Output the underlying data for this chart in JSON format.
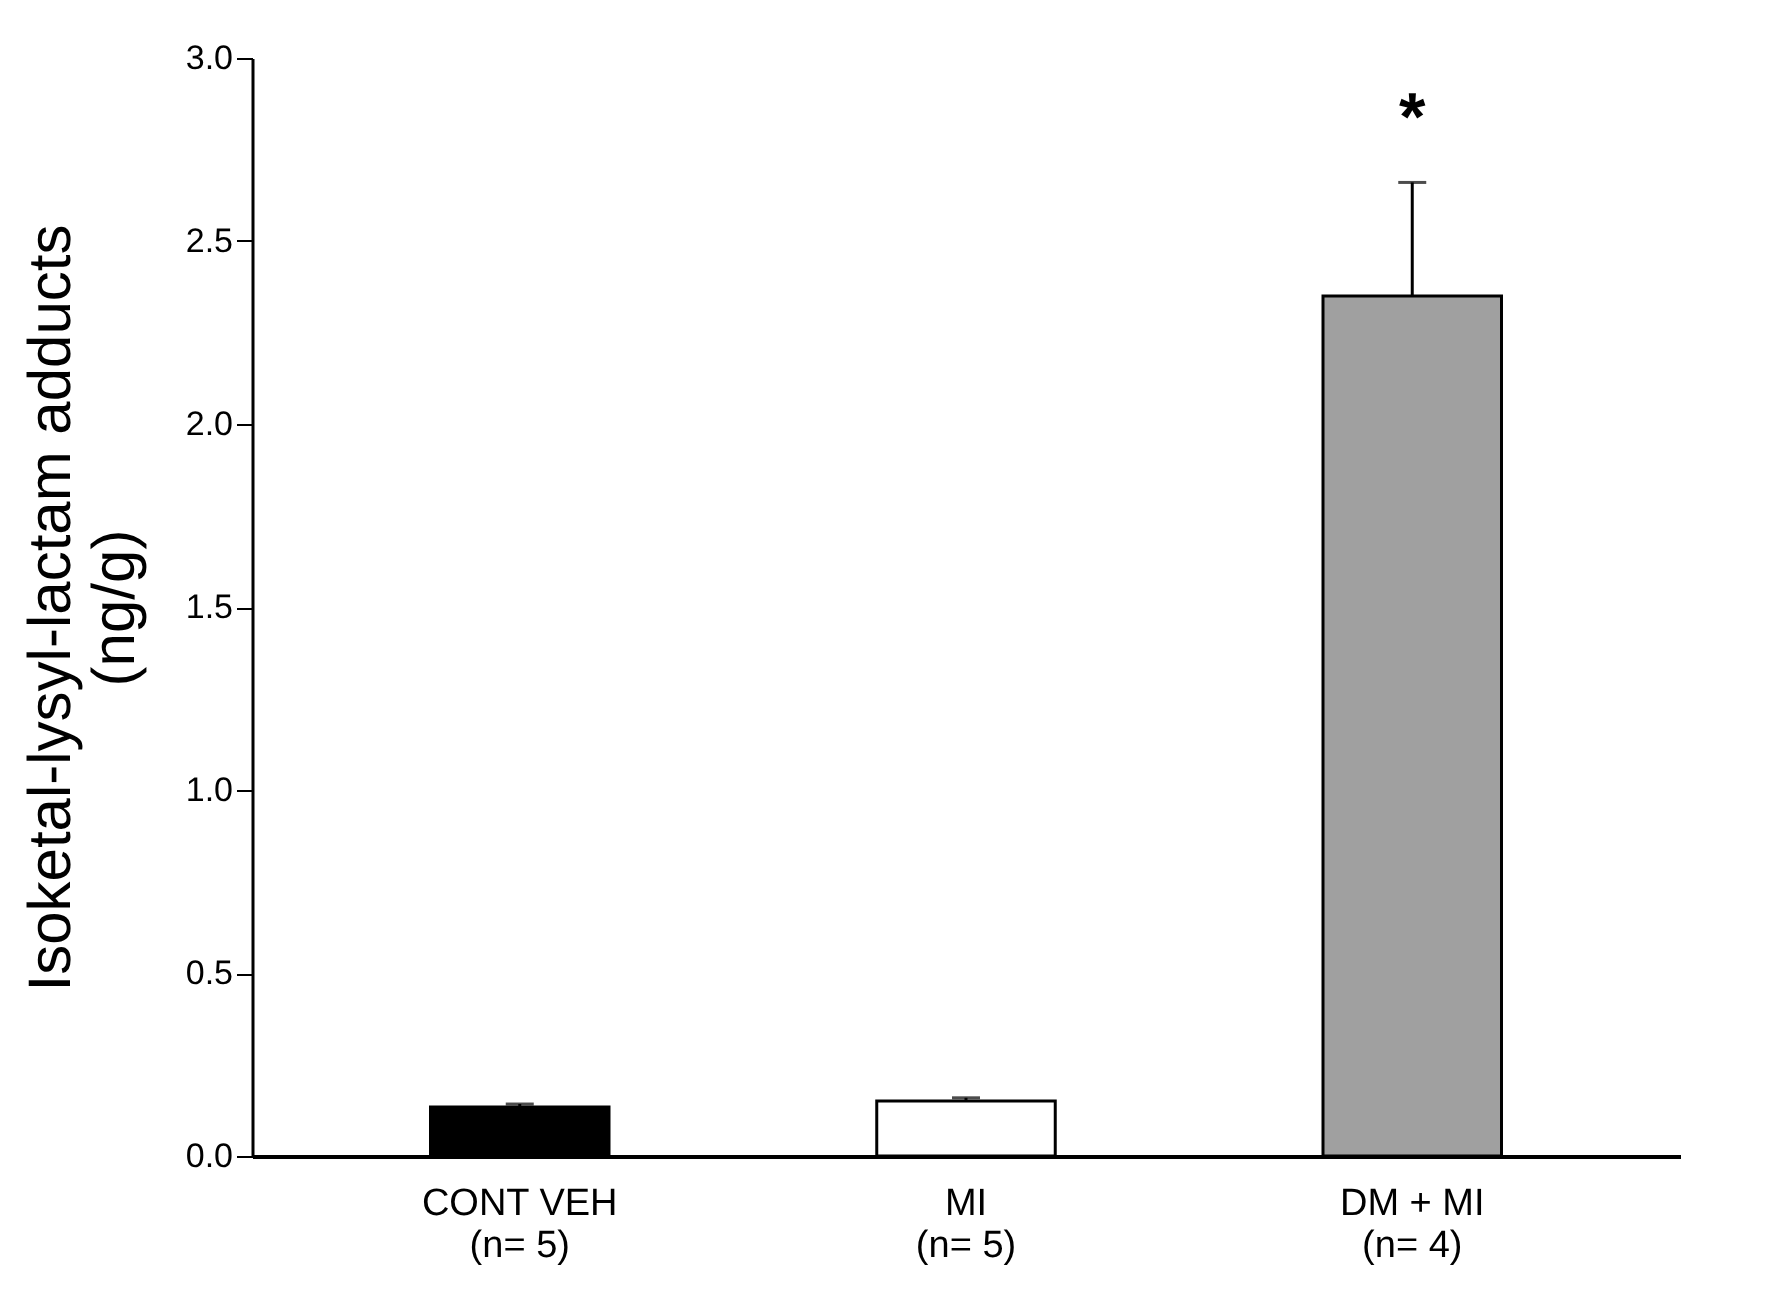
{
  "chart_data": {
    "type": "bar",
    "ylabel": "Isoketal-lysyl-lactam adducts\n(ng/g)",
    "categories": [
      "CONT VEH\n(n= 5)",
      "MI\n(n= 5)",
      "DM + MI\n(n= 4)"
    ],
    "values": [
      0.134,
      0.15,
      2.35
    ],
    "errors": [
      [
        0.134,
        0.142
      ],
      [
        0.15,
        0.159
      ],
      [
        2.35,
        2.66
      ]
    ],
    "colors": [
      "#000000",
      "#ffffff",
      "#a0a0a0"
    ],
    "ylim": [
      0,
      3.0
    ],
    "yticks": [
      {
        "value": 0,
        "label": "0.0"
      },
      {
        "value": 0.5,
        "label": "0.5"
      },
      {
        "value": 1.0,
        "label": "1.0"
      },
      {
        "value": 1.5,
        "label": "1.5"
      },
      {
        "value": 2.0,
        "label": "2.0"
      },
      {
        "value": 2.5,
        "label": "2.5"
      },
      {
        "value": 3.0,
        "label": "3.0"
      }
    ],
    "annotations": [
      {
        "text": "*",
        "x": "DM + MI\n(n= 4)",
        "y": 2.66
      }
    ],
    "grid": false
  }
}
